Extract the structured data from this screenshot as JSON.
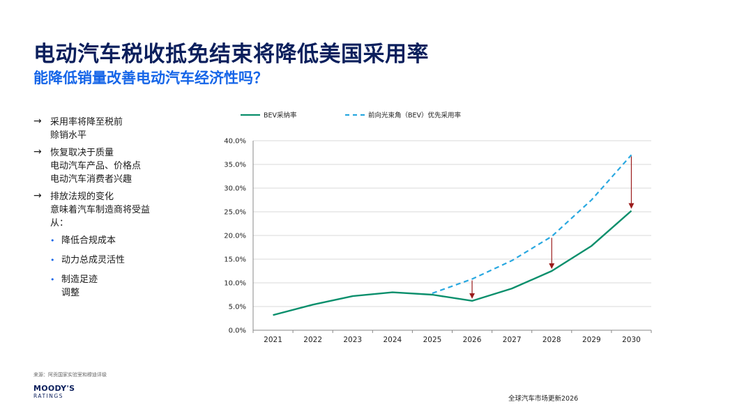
{
  "title": "电动汽车税收抵免结束将降低美国采用率",
  "subtitle": "能降低销量改善电动汽车经济性吗？",
  "bullets": [
    {
      "text": "采用率将降至税前\n赊销水平"
    },
    {
      "text": "恢复取决于质量\n电动汽车产品、价格点\n电动汽车消费者兴趣"
    },
    {
      "text": "排放法规的变化\n意味着汽车制造商将受益\n从："
    }
  ],
  "sub_bullets": [
    {
      "text": "降低合规成本"
    },
    {
      "text": "动力总成灵活性"
    },
    {
      "text": "制造足迹\n调整"
    }
  ],
  "icons": {
    "bullet": "arrow-right-icon",
    "sub_bullet": "blue-dot-icon",
    "decline": "red-down-arrow-icon"
  },
  "source": "来源：阿贡国家实验室和穆迪评级",
  "logo": {
    "main": "MOODY'S",
    "sub": "RATINGS"
  },
  "footer": "全球汽车市场更新2026",
  "colors": {
    "title": "#0b1f5c",
    "subtitle": "#1565e8",
    "bev": "#0a8f6c",
    "forecast": "#29a8e0",
    "arrow": "#9b1c1c"
  },
  "chart_data": {
    "type": "line",
    "x": [
      "2021",
      "2022",
      "2023",
      "2024",
      "2025",
      "2026",
      "2027",
      "2028",
      "2029",
      "2030"
    ],
    "series": [
      {
        "name": "BEV采纳率",
        "style": "solid",
        "values": [
          3.2,
          5.4,
          7.2,
          8.0,
          7.5,
          6.2,
          8.8,
          12.5,
          17.8,
          25.2
        ]
      },
      {
        "name": "前向光束角（BEV）优先采用率",
        "style": "dashed",
        "values": [
          null,
          null,
          null,
          null,
          7.8,
          10.8,
          14.7,
          19.8,
          27.5,
          37.0
        ]
      }
    ],
    "arrows": [
      {
        "x": "2026",
        "from": 10.8,
        "to": 6.2
      },
      {
        "x": "2028",
        "from": 19.8,
        "to": 12.5
      },
      {
        "x": "2030",
        "from": 37.0,
        "to": 25.2
      }
    ],
    "yticks": [
      "0.0%",
      "5.0%",
      "10.0%",
      "15.0%",
      "20.0%",
      "25.0%",
      "30.0%",
      "35.0%",
      "40.0%"
    ],
    "ylim": [
      0,
      40
    ],
    "grid": true,
    "legend": "top"
  }
}
